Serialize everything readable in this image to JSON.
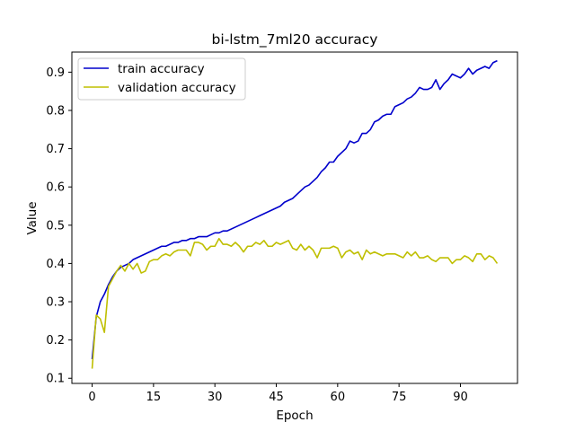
{
  "chart_data": {
    "type": "line",
    "title": "bi-lstm_7ml20 accuracy",
    "xlabel": "Epoch",
    "ylabel": "Value",
    "xlim": [
      -4.95,
      103.95
    ],
    "ylim": [
      0.0865,
      0.9525
    ],
    "xticks": [
      0,
      15,
      30,
      45,
      60,
      75,
      90
    ],
    "yticks": [
      0.1,
      0.2,
      0.3,
      0.4,
      0.5,
      0.6,
      0.7,
      0.8,
      0.9
    ],
    "grid": false,
    "legend_position": "upper left",
    "x": [
      0,
      1,
      2,
      3,
      4,
      5,
      6,
      7,
      8,
      9,
      10,
      11,
      12,
      13,
      14,
      15,
      16,
      17,
      18,
      19,
      20,
      21,
      22,
      23,
      24,
      25,
      26,
      27,
      28,
      29,
      30,
      31,
      32,
      33,
      34,
      35,
      36,
      37,
      38,
      39,
      40,
      41,
      42,
      43,
      44,
      45,
      46,
      47,
      48,
      49,
      50,
      51,
      52,
      53,
      54,
      55,
      56,
      57,
      58,
      59,
      60,
      61,
      62,
      63,
      64,
      65,
      66,
      67,
      68,
      69,
      70,
      71,
      72,
      73,
      74,
      75,
      76,
      77,
      78,
      79,
      80,
      81,
      82,
      83,
      84,
      85,
      86,
      87,
      88,
      89,
      90,
      91,
      92,
      93,
      94,
      95,
      96,
      97,
      98,
      99
    ],
    "series": [
      {
        "name": "train accuracy",
        "color": "#0000cc",
        "values": [
          0.15,
          0.26,
          0.3,
          0.32,
          0.345,
          0.365,
          0.38,
          0.39,
          0.395,
          0.4,
          0.41,
          0.415,
          0.42,
          0.425,
          0.43,
          0.435,
          0.44,
          0.445,
          0.445,
          0.45,
          0.455,
          0.455,
          0.46,
          0.46,
          0.465,
          0.465,
          0.47,
          0.47,
          0.47,
          0.475,
          0.48,
          0.48,
          0.485,
          0.485,
          0.49,
          0.495,
          0.5,
          0.505,
          0.51,
          0.515,
          0.52,
          0.525,
          0.53,
          0.535,
          0.54,
          0.545,
          0.55,
          0.56,
          0.565,
          0.57,
          0.58,
          0.59,
          0.6,
          0.605,
          0.615,
          0.625,
          0.64,
          0.65,
          0.665,
          0.665,
          0.68,
          0.69,
          0.7,
          0.72,
          0.715,
          0.72,
          0.74,
          0.74,
          0.75,
          0.77,
          0.775,
          0.785,
          0.79,
          0.79,
          0.81,
          0.815,
          0.82,
          0.83,
          0.835,
          0.845,
          0.86,
          0.855,
          0.855,
          0.86,
          0.88,
          0.855,
          0.87,
          0.88,
          0.895,
          0.89,
          0.885,
          0.895,
          0.91,
          0.895,
          0.905,
          0.91,
          0.915,
          0.91,
          0.925,
          0.93
        ]
      },
      {
        "name": "validation accuracy",
        "color": "#bfbf00",
        "values": [
          0.125,
          0.265,
          0.255,
          0.22,
          0.34,
          0.36,
          0.38,
          0.395,
          0.38,
          0.4,
          0.385,
          0.4,
          0.375,
          0.38,
          0.405,
          0.41,
          0.41,
          0.42,
          0.425,
          0.42,
          0.43,
          0.435,
          0.435,
          0.435,
          0.42,
          0.455,
          0.455,
          0.45,
          0.435,
          0.445,
          0.445,
          0.465,
          0.45,
          0.45,
          0.445,
          0.455,
          0.445,
          0.43,
          0.445,
          0.445,
          0.455,
          0.45,
          0.46,
          0.445,
          0.445,
          0.455,
          0.45,
          0.455,
          0.46,
          0.44,
          0.435,
          0.45,
          0.435,
          0.445,
          0.435,
          0.415,
          0.44,
          0.44,
          0.44,
          0.445,
          0.44,
          0.415,
          0.43,
          0.435,
          0.425,
          0.43,
          0.41,
          0.435,
          0.425,
          0.43,
          0.425,
          0.42,
          0.425,
          0.425,
          0.425,
          0.42,
          0.415,
          0.43,
          0.42,
          0.43,
          0.415,
          0.415,
          0.42,
          0.41,
          0.405,
          0.415,
          0.415,
          0.415,
          0.4,
          0.41,
          0.41,
          0.42,
          0.415,
          0.405,
          0.425,
          0.425,
          0.41,
          0.42,
          0.415,
          0.4
        ]
      }
    ]
  }
}
